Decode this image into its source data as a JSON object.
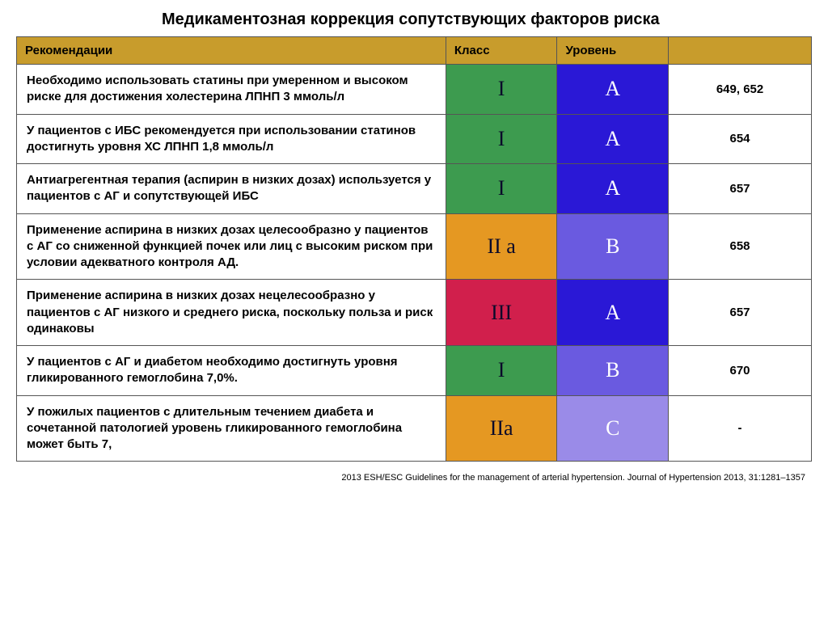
{
  "title": "Медикаментозная коррекция сопутствующих факторов риска",
  "header": {
    "bg": "#c89c2c",
    "recommendations": "Рекомендации",
    "class": "Класс",
    "level": "Уровень",
    "refs": ""
  },
  "col_widths": {
    "rec": "54%",
    "class": "14%",
    "level": "14%",
    "refs": "18%"
  },
  "class_colors": {
    "I_green": "#3d9b4f",
    "IIa_orange": "#e59822",
    "III_red": "#d11f4c"
  },
  "level_colors": {
    "A_blue": "#2a18d6",
    "B_violet": "#6a5ae0",
    "C_lilac": "#9a8be8"
  },
  "rows": [
    {
      "recommendation": "Необходимо использовать статины при умеренном и высоком риске для достижения холестерина ЛПНП  3 ммоль/л",
      "class_label": "I",
      "class_bg": "#3d9b4f",
      "level_label": "A",
      "level_bg": "#2a18d6",
      "refs": "649, 652"
    },
    {
      "recommendation": "У пациентов с ИБС рекомендуется при использовании статинов достигнуть уровня ХС ЛПНП  1,8 ммоль/л",
      "class_label": "I",
      "class_bg": "#3d9b4f",
      "level_label": "A",
      "level_bg": "#2a18d6",
      "refs": "654"
    },
    {
      "recommendation": "Антиагрегентная терапия (аспирин в низких дозах) используется у пациентов с АГ и сопутствующей ИБС",
      "class_label": "I",
      "class_bg": "#3d9b4f",
      "level_label": "A",
      "level_bg": "#2a18d6",
      "refs": "657"
    },
    {
      "recommendation": "Применение аспирина в низких дозах целесообразно у пациентов с АГ со сниженной функцией почек или лиц с высоким риском при условии адекватного контроля АД.",
      "class_label": "II  a",
      "class_bg": "#e59822",
      "level_label": "B",
      "level_bg": "#6a5ae0",
      "refs": "658"
    },
    {
      "recommendation": "Применение аспирина в низких дозах нецелесообразно у пациентов с АГ низкого и среднего риска, поскольку польза  и риск одинаковы",
      "class_label": "III",
      "class_bg": "#d11f4c",
      "level_label": "A",
      "level_bg": "#2a18d6",
      "refs": "657"
    },
    {
      "recommendation": "У пациентов с АГ и диабетом необходимо достигнуть уровня гликированного гемоглобина  7,0%.",
      "class_label": "I",
      "class_bg": "#3d9b4f",
      "level_label": "B",
      "level_bg": "#6a5ae0",
      "refs": "670"
    },
    {
      "recommendation": "У пожилых пациентов с длительным течением диабета и сочетанной патологией уровень гликированного гемоглобина может быть 7,",
      "class_label": "IIa",
      "class_bg": "#e59822",
      "level_label": "C",
      "level_bg": "#9a8be8",
      "refs": "-"
    }
  ],
  "footer": "2013 ESH/ESC Guidelines for the management of arterial hypertension. Journal of Hypertension 2013, 31:1281–1357"
}
